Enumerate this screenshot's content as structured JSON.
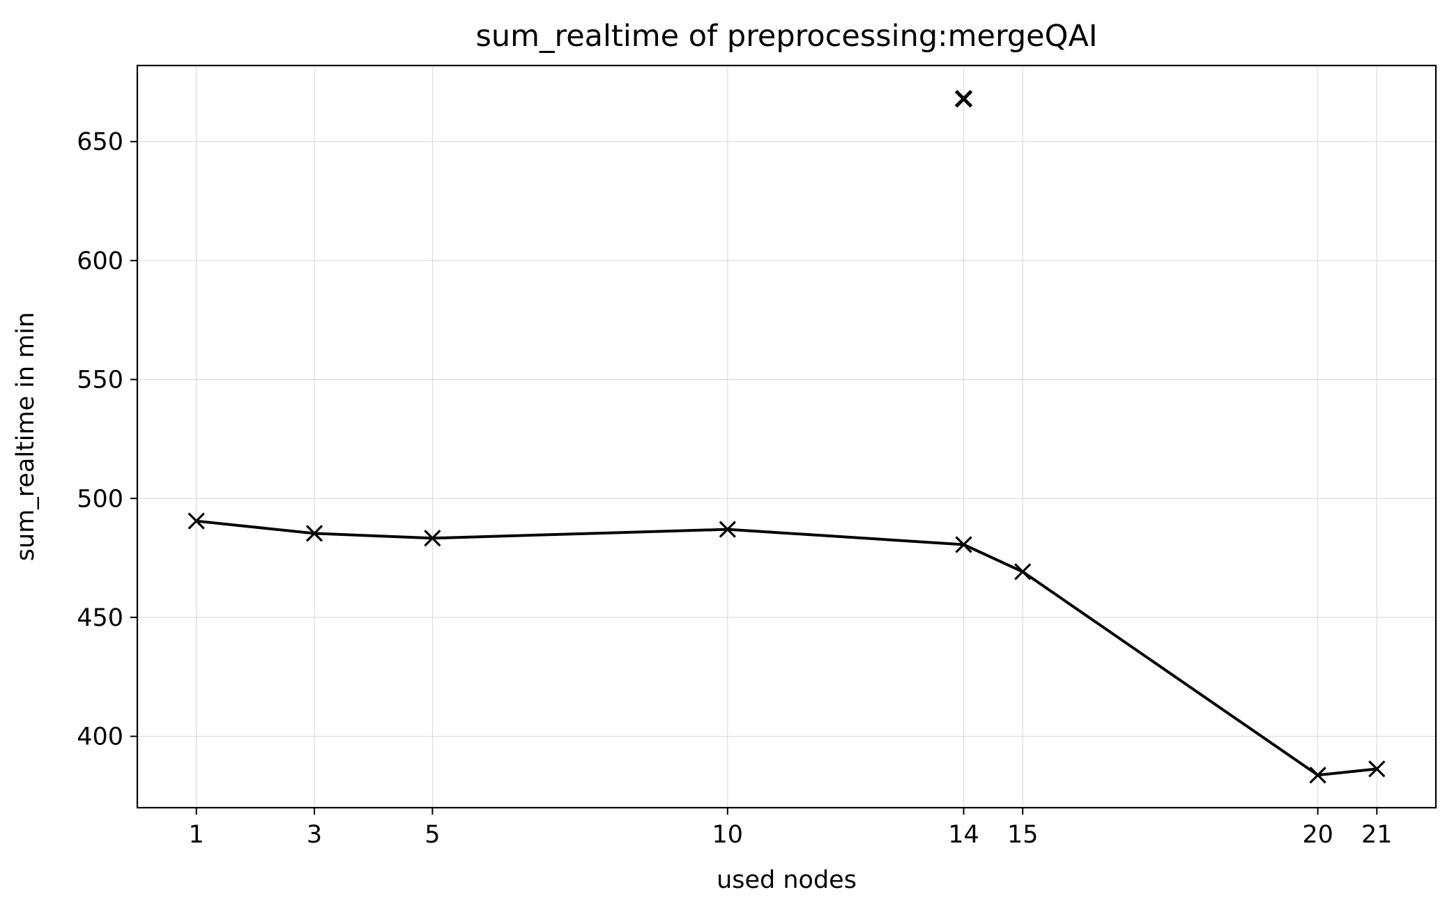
{
  "chart_data": {
    "type": "line",
    "title": "sum_realtime of preprocessing:mergeQAI",
    "xlabel": "used nodes",
    "ylabel": "sum_realtime in min",
    "x_ticks": [
      1,
      3,
      5,
      10,
      14,
      15,
      20,
      21
    ],
    "y_ticks": [
      400,
      450,
      500,
      550,
      600,
      650
    ],
    "xlim": [
      0,
      22
    ],
    "ylim": [
      370,
      682
    ],
    "grid": true,
    "series": [
      {
        "marker": "x",
        "color": "#000000",
        "x": [
          1,
          3,
          5,
          10,
          14,
          15,
          20,
          21
        ],
        "y": [
          490.5,
          485.3,
          483.3,
          487,
          480.6,
          469.2,
          383.7,
          386.3
        ]
      }
    ],
    "extra_points": [
      {
        "marker": "x",
        "color": "#000000",
        "x": 14,
        "y": 668
      }
    ]
  }
}
